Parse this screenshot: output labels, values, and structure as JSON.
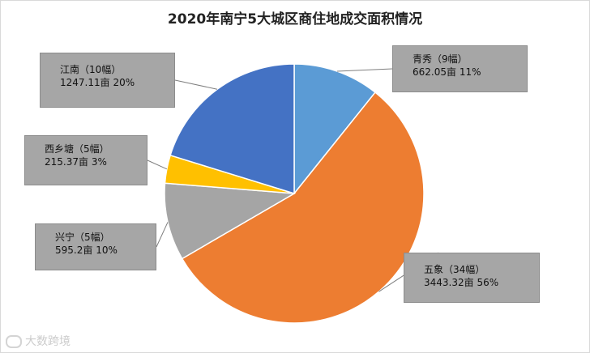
{
  "chart_data": {
    "type": "pie",
    "title": "2020年南宁5大城区商住地成交面积情况",
    "slices": [
      {
        "region": "青秀",
        "count_label": "（9幅）",
        "value": 662.05,
        "value_label": "662.05亩",
        "percent": 11,
        "percent_label": "11%",
        "color": "#5b9bd5"
      },
      {
        "region": "五象",
        "count_label": "（34幅）",
        "value": 3443.32,
        "value_label": "3443.32亩",
        "percent": 56,
        "percent_label": "56%",
        "color": "#ed7d31"
      },
      {
        "region": "兴宁",
        "count_label": "（5幅）",
        "value": 595.2,
        "value_label": "595.2亩",
        "percent": 10,
        "percent_label": "10%",
        "color": "#a5a5a5"
      },
      {
        "region": "西乡塘",
        "count_label": "（5幅）",
        "value": 215.37,
        "value_label": "215.37亩",
        "percent": 3,
        "percent_label": "3%",
        "color": "#ffc000"
      },
      {
        "region": "江南",
        "count_label": "（10幅）",
        "value": 1247.11,
        "value_label": "1247.11亩",
        "percent": 20,
        "percent_label": "20%",
        "color": "#4472c4"
      }
    ],
    "start_angle_deg": 0,
    "direction": "clockwise"
  },
  "watermark": {
    "text": "大数跨境"
  }
}
